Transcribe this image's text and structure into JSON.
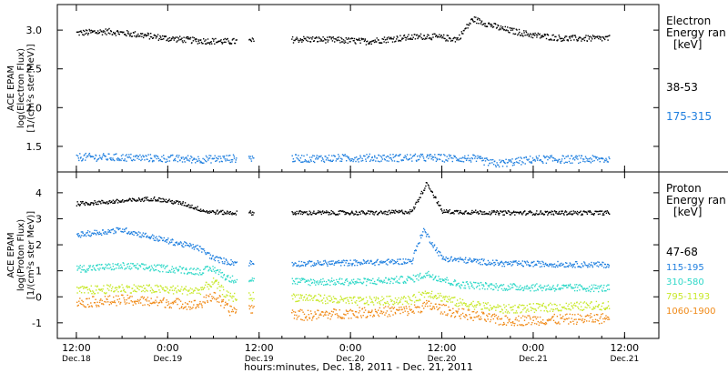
{
  "chart_data": [
    {
      "type": "scatter",
      "ylabel_lines": [
        "ACE EPAM",
        "log(Electron Flux)",
        "[1/(cm²s ster MeV)]"
      ],
      "ylim": [
        1.17,
        3.33
      ],
      "yticks": [
        1.5,
        2.0,
        2.5,
        3.0
      ],
      "ytick_labels": [
        "1.5",
        "2.0",
        "2.5",
        "3.0"
      ],
      "legend_title": [
        "Electron",
        "Energy ran",
        "[keV]"
      ],
      "series": [
        {
          "name": "38-53",
          "color": "#000000",
          "points": [
            [
              0,
              2.97
            ],
            [
              4,
              2.99
            ],
            [
              8,
              2.95
            ],
            [
              12,
              2.9
            ],
            [
              16,
              2.87
            ],
            [
              20,
              2.86
            ],
            [
              24,
              2.87
            ],
            [
              30,
              2.89
            ],
            [
              34,
              2.88
            ],
            [
              38,
              2.86
            ],
            [
              42,
              2.9
            ],
            [
              46,
              2.93
            ],
            [
              50,
              2.89
            ],
            [
              52,
              3.15
            ],
            [
              56,
              3.02
            ],
            [
              60,
              2.94
            ],
            [
              64,
              2.9
            ],
            [
              70,
              2.9
            ]
          ]
        },
        {
          "name": "175-315",
          "color": "#1f7fdf",
          "points": [
            [
              0,
              1.37
            ],
            [
              8,
              1.36
            ],
            [
              16,
              1.34
            ],
            [
              24,
              1.36
            ],
            [
              30,
              1.35
            ],
            [
              38,
              1.36
            ],
            [
              46,
              1.36
            ],
            [
              52,
              1.35
            ],
            [
              55,
              1.28
            ],
            [
              60,
              1.34
            ],
            [
              70,
              1.34
            ]
          ]
        }
      ]
    },
    {
      "type": "scatter",
      "ylabel_lines": [
        "ACE EPAM",
        "log(Proton Flux)",
        "[1/(cm²s ster MeV)]"
      ],
      "ylim": [
        -1.6,
        4.8
      ],
      "yticks": [
        -1,
        0,
        1,
        2,
        3,
        4
      ],
      "ytick_labels": [
        "-1",
        "0",
        "1",
        "2",
        "3",
        "4"
      ],
      "legend_title": [
        "Proton",
        "Energy ran",
        "[keV]"
      ],
      "series": [
        {
          "name": "47-68",
          "color": "#000000",
          "points": [
            [
              0,
              3.6
            ],
            [
              6,
              3.7
            ],
            [
              10,
              3.8
            ],
            [
              14,
              3.6
            ],
            [
              17,
              3.3
            ],
            [
              20,
              3.25
            ],
            [
              24,
              3.25
            ],
            [
              30,
              3.25
            ],
            [
              40,
              3.25
            ],
            [
              44,
              3.3
            ],
            [
              46,
              4.4
            ],
            [
              48,
              3.3
            ],
            [
              56,
              3.25
            ],
            [
              70,
              3.25
            ]
          ]
        },
        {
          "name": "115-195",
          "color": "#1f7fdf",
          "points": [
            [
              0,
              2.4
            ],
            [
              6,
              2.6
            ],
            [
              10,
              2.3
            ],
            [
              13,
              2.1
            ],
            [
              16,
              1.9
            ],
            [
              18,
              1.5
            ],
            [
              20,
              1.35
            ],
            [
              24,
              1.3
            ],
            [
              30,
              1.3
            ],
            [
              40,
              1.35
            ],
            [
              44,
              1.4
            ],
            [
              45.5,
              2.6
            ],
            [
              48,
              1.5
            ],
            [
              56,
              1.3
            ],
            [
              70,
              1.25
            ]
          ]
        },
        {
          "name": "310-580",
          "color": "#2fd8c8",
          "points": [
            [
              0,
              1.1
            ],
            [
              6,
              1.2
            ],
            [
              12,
              1.1
            ],
            [
              16,
              1.0
            ],
            [
              18,
              1.1
            ],
            [
              20,
              0.7
            ],
            [
              24,
              0.7
            ],
            [
              30,
              0.6
            ],
            [
              38,
              0.6
            ],
            [
              44,
              0.7
            ],
            [
              46,
              0.9
            ],
            [
              50,
              0.5
            ],
            [
              56,
              0.4
            ],
            [
              70,
              0.35
            ]
          ]
        },
        {
          "name": "795-1193",
          "color": "#c8e82a",
          "points": [
            [
              0,
              0.25
            ],
            [
              6,
              0.35
            ],
            [
              12,
              0.3
            ],
            [
              16,
              0.25
            ],
            [
              18,
              0.6
            ],
            [
              20,
              0.0
            ],
            [
              24,
              0.05
            ],
            [
              30,
              0.0
            ],
            [
              36,
              -0.15
            ],
            [
              44,
              -0.1
            ],
            [
              46,
              0.2
            ],
            [
              50,
              -0.2
            ],
            [
              56,
              -0.45
            ],
            [
              70,
              -0.3
            ]
          ]
        },
        {
          "name": "1060-1900",
          "color": "#f08a18",
          "points": [
            [
              0,
              -0.2
            ],
            [
              6,
              -0.1
            ],
            [
              12,
              -0.2
            ],
            [
              16,
              -0.3
            ],
            [
              18,
              0.1
            ],
            [
              20,
              -0.5
            ],
            [
              24,
              -0.4
            ],
            [
              30,
              -0.7
            ],
            [
              36,
              -0.6
            ],
            [
              44,
              -0.5
            ],
            [
              46,
              -0.3
            ],
            [
              50,
              -0.6
            ],
            [
              56,
              -0.9
            ],
            [
              70,
              -0.8
            ]
          ]
        }
      ]
    }
  ],
  "x_axis": {
    "range_hours": [
      -2.5,
      76.5
    ],
    "data_gaps": [
      [
        21,
        22.5
      ],
      [
        23.3,
        28.2
      ]
    ],
    "ticks": [
      {
        "h": 0,
        "time": "12:00",
        "date": "Dec.18"
      },
      {
        "h": 12,
        "time": "0:00",
        "date": "Dec.19"
      },
      {
        "h": 24,
        "time": "12:00",
        "date": "Dec.19"
      },
      {
        "h": 36,
        "time": "0:00",
        "date": "Dec.20"
      },
      {
        "h": 48,
        "time": "12:00",
        "date": "Dec.20"
      },
      {
        "h": 60,
        "time": "0:00",
        "date": "Dec.21"
      },
      {
        "h": 72,
        "time": "12:00",
        "date": "Dec.21"
      }
    ],
    "xlabel": "hours:minutes, Dec. 18, 2011 - Dec. 21, 2011"
  }
}
